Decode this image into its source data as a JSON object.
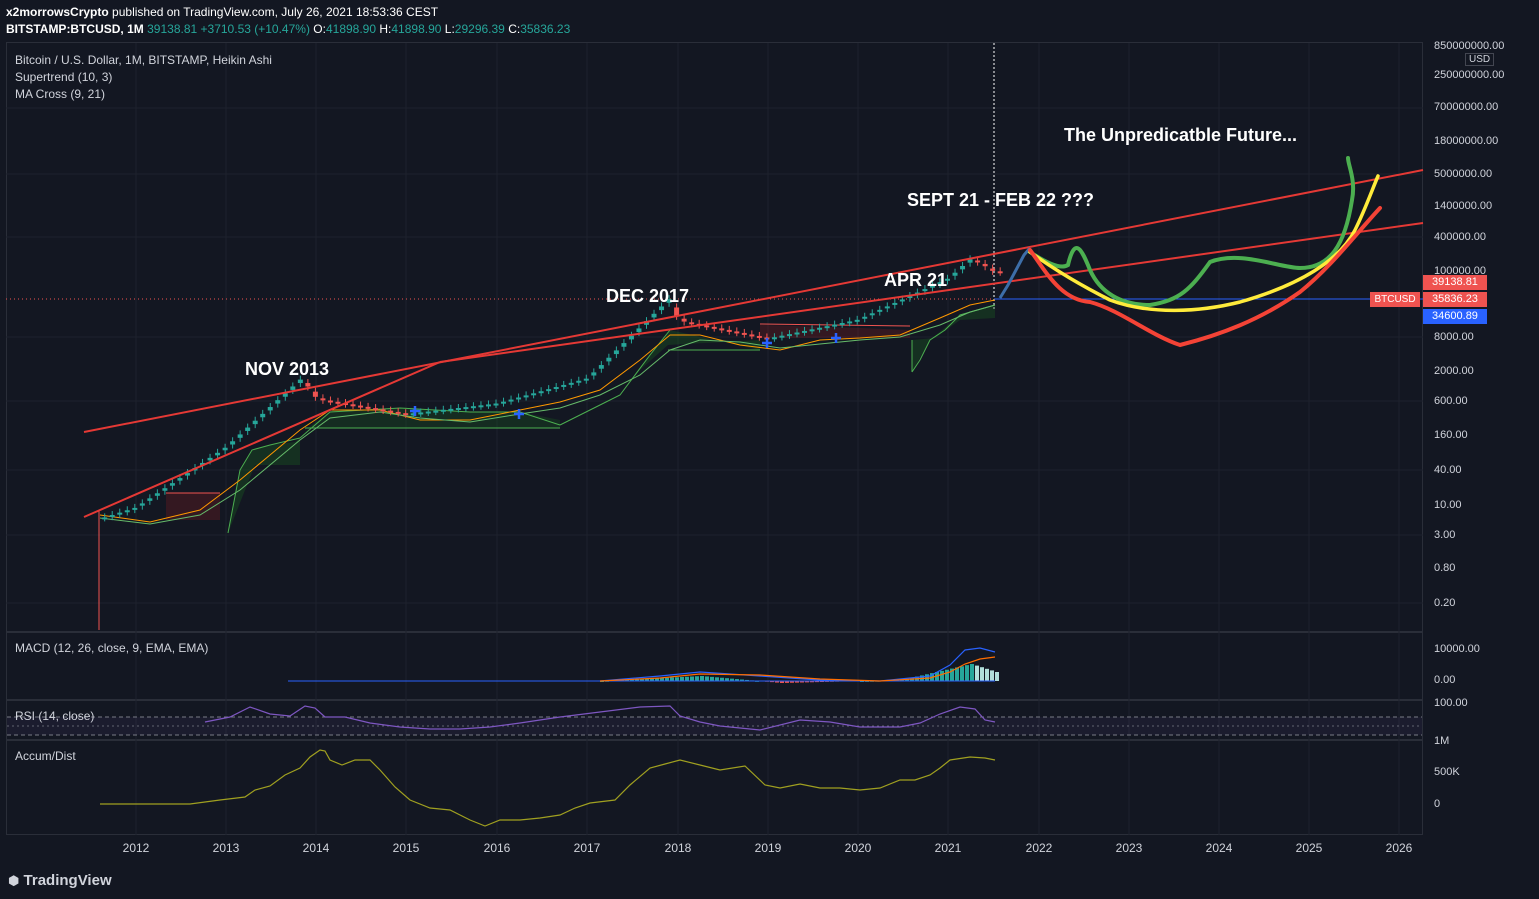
{
  "header": {
    "publisher": "x2morrowsCrypto",
    "published_text": "published on TradingView.com, July 26, 2021 18:53:36 CEST",
    "symbol": "BITSTAMP:BTCUSD, 1M",
    "price": "39138.81",
    "change": "+3710.53 (+10.47%)",
    "o_label": "O:",
    "o_value": "41898.90",
    "h_label": "H:",
    "h_value": "41898.90",
    "l_label": "L:",
    "l_value": "29296.39",
    "c_label": "C:",
    "c_value": "35836.23"
  },
  "legends": {
    "main_title": "Bitcoin / U.S. Dollar, 1M, BITSTAMP, Heikin Ashi",
    "supertrend": "Supertrend (10, 3)",
    "ma_cross": "MA Cross (9, 21)",
    "macd": "MACD (12, 26, close, 9, EMA, EMA)",
    "rsi": "RSI (14, close)",
    "accum": "Accum/Dist"
  },
  "annotations": {
    "nov2013": "NOV 2013",
    "dec2017": "DEC 2017",
    "apr21": "APR 21",
    "sept21": "SEPT 21 - FEB 22 ???",
    "future": "The Unpredicatble Future..."
  },
  "price_axis": {
    "currency": "USD",
    "labels": [
      "850000000.00",
      "250000000.00",
      "70000000.00",
      "18000000.00",
      "5000000.00",
      "1400000.00",
      "400000.00",
      "100000.00",
      "8000.00",
      "2000.00",
      "600.00",
      "160.00",
      "40.00",
      "10.00",
      "3.00",
      "0.80",
      "0.20"
    ]
  },
  "price_badges": {
    "last": "39138.81",
    "symbol_tag": "BTCUSD",
    "close": "35836.23",
    "ma": "34600.89"
  },
  "macd_axis": [
    "10000.00",
    "0.00"
  ],
  "rsi_axis": [
    "100.00"
  ],
  "accum_axis": [
    "1M",
    "500K",
    "0"
  ],
  "time_axis": [
    "2012",
    "2013",
    "2014",
    "2015",
    "2016",
    "2017",
    "2018",
    "2019",
    "2020",
    "2021",
    "2022",
    "2023",
    "2024",
    "2025",
    "2026"
  ],
  "branding": "TradingView",
  "colors": {
    "background": "#131722",
    "up": "#26a69a",
    "down": "#ef5350",
    "trendline": "#e53935",
    "proj_green": "#4caf50",
    "proj_yellow": "#ffeb3b",
    "proj_red": "#f44336",
    "rsi": "#7e57c2",
    "accum": "#a0a020",
    "macd_line": "#2962ff",
    "signal_line": "#ff6d00"
  },
  "chart_data": {
    "type": "candlestick",
    "scale": "log",
    "series_name": "BTCUSD",
    "x": [
      "2011",
      "2012",
      "2013",
      "2013-11",
      "2014",
      "2015",
      "2016",
      "2017",
      "2017-12",
      "2018",
      "2019",
      "2020",
      "2021",
      "2021-04",
      "2021-07"
    ],
    "close": [
      5,
      13,
      100,
      1000,
      500,
      300,
      430,
      1000,
      15000,
      7000,
      3800,
      7200,
      29000,
      57000,
      35836
    ],
    "last_price": 35836.23,
    "projection_paths": [
      "green",
      "yellow",
      "red"
    ],
    "projection_range": [
      "2021-09",
      "2025-10"
    ]
  }
}
